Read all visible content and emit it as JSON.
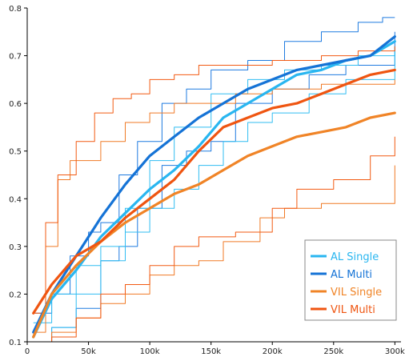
{
  "chart_data": {
    "type": "line",
    "title": "",
    "xlabel": "",
    "ylabel": "",
    "xlim": [
      0,
      305000
    ],
    "ylim": [
      0.1,
      0.8
    ],
    "x_ticks": [
      0,
      50000,
      100000,
      150000,
      200000,
      250000,
      300000
    ],
    "x_tick_labels": [
      "0",
      "50k",
      "100k",
      "150k",
      "200k",
      "250k",
      "300k"
    ],
    "y_ticks": [
      0.1,
      0.2,
      0.3,
      0.4,
      0.5,
      0.6,
      0.7,
      0.8
    ],
    "y_tick_labels": [
      "0.1",
      "0.2",
      "0.3",
      "0.4",
      "0.5",
      "0.6",
      "0.7",
      "0.8"
    ],
    "grid": false,
    "legend_position": "bottom-right",
    "series": [
      {
        "name": "AL Single",
        "color": "#29b6f0",
        "role": "mean",
        "x": [
          5000,
          20000,
          40000,
          60000,
          80000,
          100000,
          120000,
          140000,
          160000,
          180000,
          200000,
          220000,
          240000,
          260000,
          280000,
          300000
        ],
        "y": [
          0.11,
          0.19,
          0.25,
          0.32,
          0.37,
          0.42,
          0.46,
          0.51,
          0.57,
          0.6,
          0.63,
          0.66,
          0.67,
          0.69,
          0.7,
          0.73
        ]
      },
      {
        "name": "AL Multi",
        "color": "#1573d6",
        "role": "mean",
        "x": [
          5000,
          20000,
          40000,
          60000,
          80000,
          100000,
          120000,
          140000,
          160000,
          180000,
          200000,
          220000,
          240000,
          260000,
          280000,
          300000
        ],
        "y": [
          0.12,
          0.2,
          0.28,
          0.36,
          0.43,
          0.49,
          0.53,
          0.57,
          0.6,
          0.63,
          0.65,
          0.67,
          0.68,
          0.69,
          0.7,
          0.74
        ]
      },
      {
        "name": "VIL Single",
        "color": "#f08427",
        "role": "mean",
        "x": [
          5000,
          20000,
          40000,
          60000,
          80000,
          100000,
          120000,
          140000,
          160000,
          180000,
          200000,
          220000,
          240000,
          260000,
          280000,
          300000
        ],
        "y": [
          0.11,
          0.2,
          0.26,
          0.31,
          0.35,
          0.38,
          0.41,
          0.43,
          0.46,
          0.49,
          0.51,
          0.53,
          0.54,
          0.55,
          0.57,
          0.58
        ]
      },
      {
        "name": "VIL Multi",
        "color": "#ef5511",
        "role": "mean",
        "x": [
          5000,
          20000,
          40000,
          60000,
          80000,
          100000,
          120000,
          140000,
          160000,
          180000,
          200000,
          220000,
          240000,
          260000,
          280000,
          300000
        ],
        "y": [
          0.16,
          0.22,
          0.28,
          0.31,
          0.36,
          0.4,
          0.44,
          0.5,
          0.55,
          0.57,
          0.59,
          0.6,
          0.62,
          0.64,
          0.66,
          0.67
        ]
      },
      {
        "color": "#1f7be0",
        "role": "bound",
        "x": [
          5000,
          20000,
          35000,
          50000,
          60000,
          75000,
          90000,
          110000,
          130000,
          150000,
          180000,
          210000,
          240000,
          270000,
          290000,
          300000
        ],
        "y": [
          0.16,
          0.2,
          0.28,
          0.33,
          0.35,
          0.45,
          0.52,
          0.6,
          0.63,
          0.67,
          0.69,
          0.73,
          0.75,
          0.77,
          0.78,
          0.78
        ]
      },
      {
        "color": "#1f7be0",
        "role": "bound",
        "x": [
          5000,
          20000,
          40000,
          60000,
          75000,
          90000,
          110000,
          130000,
          150000,
          170000,
          200000,
          230000,
          260000,
          300000
        ],
        "y": [
          0.1,
          0.13,
          0.17,
          0.27,
          0.3,
          0.38,
          0.47,
          0.5,
          0.52,
          0.6,
          0.63,
          0.66,
          0.68,
          0.75
        ]
      },
      {
        "color": "#30bdf2",
        "role": "bound",
        "x": [
          5000,
          20000,
          40000,
          60000,
          80000,
          100000,
          120000,
          150000,
          180000,
          210000,
          240000,
          270000,
          300000
        ],
        "y": [
          0.14,
          0.2,
          0.26,
          0.3,
          0.38,
          0.48,
          0.55,
          0.62,
          0.65,
          0.67,
          0.68,
          0.7,
          0.72
        ]
      },
      {
        "color": "#30bdf2",
        "role": "bound",
        "x": [
          5000,
          20000,
          40000,
          60000,
          80000,
          100000,
          120000,
          140000,
          160000,
          180000,
          200000,
          230000,
          260000,
          300000
        ],
        "y": [
          0.1,
          0.13,
          0.2,
          0.27,
          0.33,
          0.38,
          0.42,
          0.47,
          0.52,
          0.56,
          0.58,
          0.62,
          0.65,
          0.71
        ]
      },
      {
        "color": "#f07a26",
        "role": "bound",
        "x": [
          5000,
          15000,
          25000,
          35000,
          45000,
          60000,
          80000,
          100000,
          120000,
          150000,
          170000,
          200000,
          240000,
          270000,
          300000
        ],
        "y": [
          0.12,
          0.3,
          0.44,
          0.48,
          0.48,
          0.52,
          0.56,
          0.58,
          0.6,
          0.6,
          0.62,
          0.63,
          0.64,
          0.64,
          0.65
        ]
      },
      {
        "color": "#f07a26",
        "role": "bound",
        "x": [
          5000,
          20000,
          40000,
          60000,
          80000,
          100000,
          120000,
          140000,
          160000,
          190000,
          210000,
          240000,
          270000,
          300000
        ],
        "y": [
          0.1,
          0.12,
          0.15,
          0.18,
          0.2,
          0.24,
          0.26,
          0.27,
          0.31,
          0.36,
          0.38,
          0.39,
          0.39,
          0.47
        ]
      },
      {
        "color": "#f25a12",
        "role": "bound",
        "x": [
          5000,
          15000,
          25000,
          40000,
          55000,
          70000,
          85000,
          100000,
          120000,
          140000,
          160000,
          200000,
          240000,
          270000,
          300000
        ],
        "y": [
          0.16,
          0.35,
          0.45,
          0.52,
          0.58,
          0.61,
          0.62,
          0.65,
          0.66,
          0.68,
          0.68,
          0.69,
          0.7,
          0.71,
          0.72
        ]
      },
      {
        "color": "#f25a12",
        "role": "bound",
        "x": [
          5000,
          20000,
          40000,
          60000,
          80000,
          100000,
          120000,
          140000,
          170000,
          200000,
          220000,
          250000,
          280000,
          300000
        ],
        "y": [
          0.1,
          0.11,
          0.15,
          0.2,
          0.22,
          0.26,
          0.3,
          0.32,
          0.33,
          0.38,
          0.42,
          0.44,
          0.49,
          0.53
        ]
      }
    ]
  }
}
